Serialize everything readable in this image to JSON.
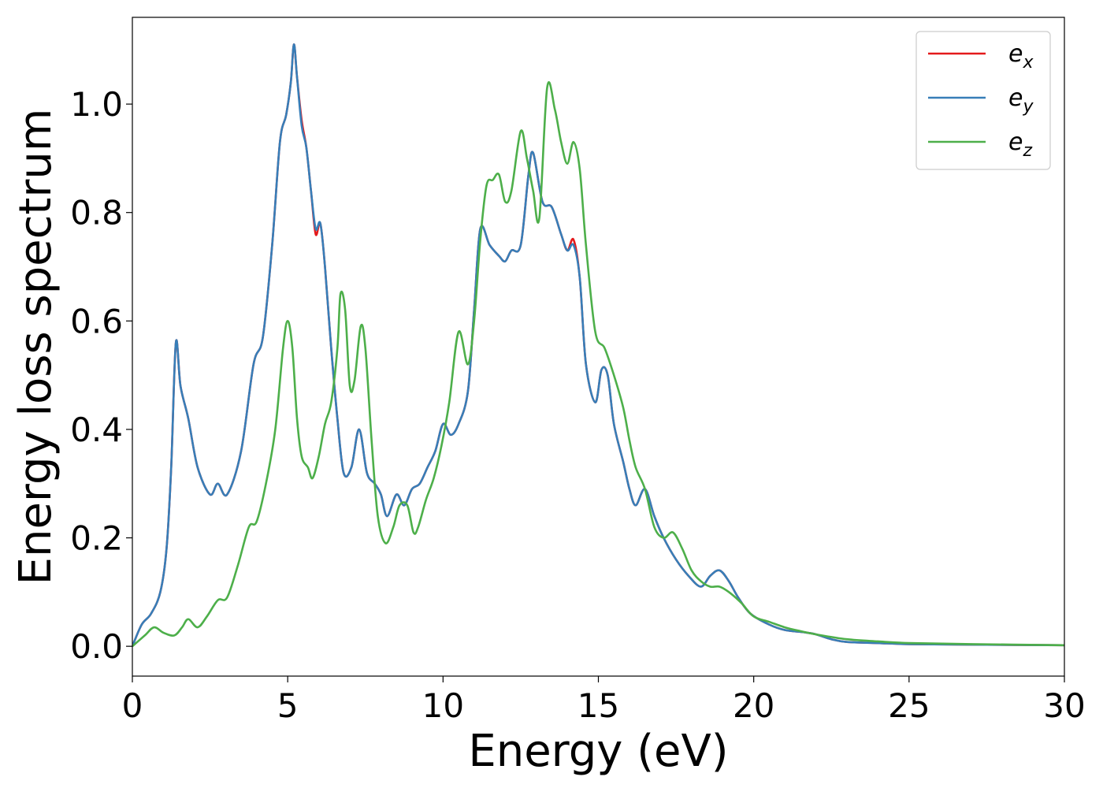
{
  "chart_data": {
    "type": "line",
    "xlabel": "Energy (eV)",
    "ylabel": "Energy loss spectrum",
    "xlim": [
      0,
      30
    ],
    "ylim": [
      -0.055,
      1.16
    ],
    "xticks": [
      0,
      5,
      10,
      15,
      20,
      25,
      30
    ],
    "xtick_labels": [
      "0",
      "5",
      "10",
      "15",
      "20",
      "25",
      "30"
    ],
    "yticks": [
      0.0,
      0.2,
      0.4,
      0.6,
      0.8,
      1.0
    ],
    "ytick_labels": [
      "0.0",
      "0.2",
      "0.4",
      "0.6",
      "0.8",
      "1.0"
    ],
    "grid": false,
    "legend_position": "top-right",
    "series": [
      {
        "name": "e_x",
        "label_base": "e",
        "label_sub": "x",
        "color": "#e41a1c",
        "x": [
          0,
          0.3,
          0.6,
          0.9,
          1.1,
          1.25,
          1.4,
          1.55,
          1.8,
          2.1,
          2.5,
          2.75,
          3.05,
          3.5,
          3.9,
          4.2,
          4.5,
          4.75,
          4.95,
          5.1,
          5.2,
          5.3,
          5.45,
          5.6,
          5.75,
          5.9,
          6.05,
          6.2,
          6.4,
          6.6,
          6.8,
          7.05,
          7.3,
          7.55,
          7.8,
          8.0,
          8.2,
          8.5,
          8.75,
          9.0,
          9.25,
          9.5,
          9.75,
          10.0,
          10.25,
          10.5,
          10.8,
          11.0,
          11.2,
          11.5,
          11.8,
          12.0,
          12.2,
          12.5,
          12.75,
          12.9,
          13.2,
          13.5,
          13.8,
          14.0,
          14.2,
          14.4,
          14.6,
          14.9,
          15.1,
          15.3,
          15.5,
          15.8,
          16.0,
          16.2,
          16.5,
          16.8,
          17.1,
          17.5,
          17.9,
          18.3,
          18.6,
          18.9,
          19.2,
          19.5,
          19.9,
          20.5,
          21.0,
          21.6,
          22.0,
          22.5,
          23.0,
          24.0,
          25.0,
          27.0,
          30.0
        ],
        "y": [
          0.0,
          0.04,
          0.06,
          0.1,
          0.18,
          0.33,
          0.56,
          0.48,
          0.42,
          0.33,
          0.28,
          0.3,
          0.28,
          0.36,
          0.52,
          0.57,
          0.74,
          0.93,
          0.98,
          1.04,
          1.11,
          1.05,
          0.97,
          0.92,
          0.84,
          0.76,
          0.78,
          0.7,
          0.55,
          0.42,
          0.32,
          0.33,
          0.4,
          0.32,
          0.3,
          0.28,
          0.24,
          0.28,
          0.26,
          0.29,
          0.3,
          0.33,
          0.36,
          0.41,
          0.39,
          0.41,
          0.47,
          0.62,
          0.77,
          0.74,
          0.72,
          0.71,
          0.73,
          0.74,
          0.87,
          0.91,
          0.82,
          0.81,
          0.76,
          0.73,
          0.75,
          0.68,
          0.52,
          0.45,
          0.51,
          0.5,
          0.41,
          0.34,
          0.29,
          0.26,
          0.29,
          0.24,
          0.2,
          0.16,
          0.13,
          0.11,
          0.13,
          0.14,
          0.12,
          0.09,
          0.06,
          0.04,
          0.03,
          0.026,
          0.022,
          0.013,
          0.008,
          0.006,
          0.004,
          0.003,
          0.002
        ]
      },
      {
        "name": "e_y",
        "label_base": "e",
        "label_sub": "y",
        "color": "#377eb8",
        "x": [
          0,
          0.3,
          0.6,
          0.9,
          1.1,
          1.25,
          1.4,
          1.55,
          1.8,
          2.1,
          2.5,
          2.75,
          3.05,
          3.5,
          3.9,
          4.2,
          4.5,
          4.75,
          4.95,
          5.1,
          5.2,
          5.3,
          5.45,
          5.6,
          5.75,
          5.9,
          6.05,
          6.2,
          6.4,
          6.6,
          6.8,
          7.05,
          7.3,
          7.55,
          7.8,
          8.0,
          8.2,
          8.5,
          8.75,
          9.0,
          9.25,
          9.5,
          9.75,
          10.0,
          10.25,
          10.5,
          10.8,
          11.0,
          11.2,
          11.5,
          11.8,
          12.0,
          12.2,
          12.5,
          12.75,
          12.9,
          13.2,
          13.5,
          13.8,
          14.0,
          14.2,
          14.4,
          14.6,
          14.9,
          15.1,
          15.3,
          15.5,
          15.8,
          16.0,
          16.2,
          16.5,
          16.8,
          17.1,
          17.5,
          17.9,
          18.3,
          18.6,
          18.9,
          19.2,
          19.5,
          19.9,
          20.5,
          21.0,
          21.6,
          22.0,
          22.5,
          23.0,
          24.0,
          25.0,
          27.0,
          30.0
        ],
        "y": [
          0.0,
          0.04,
          0.06,
          0.1,
          0.18,
          0.33,
          0.56,
          0.48,
          0.42,
          0.33,
          0.28,
          0.3,
          0.28,
          0.36,
          0.52,
          0.57,
          0.74,
          0.93,
          0.98,
          1.04,
          1.11,
          1.05,
          0.96,
          0.92,
          0.84,
          0.77,
          0.78,
          0.7,
          0.55,
          0.42,
          0.32,
          0.33,
          0.4,
          0.32,
          0.3,
          0.28,
          0.24,
          0.28,
          0.26,
          0.29,
          0.3,
          0.33,
          0.36,
          0.41,
          0.39,
          0.41,
          0.47,
          0.62,
          0.77,
          0.74,
          0.72,
          0.71,
          0.73,
          0.74,
          0.87,
          0.91,
          0.82,
          0.81,
          0.76,
          0.73,
          0.74,
          0.68,
          0.52,
          0.45,
          0.51,
          0.5,
          0.41,
          0.34,
          0.29,
          0.26,
          0.29,
          0.24,
          0.2,
          0.16,
          0.13,
          0.11,
          0.13,
          0.14,
          0.12,
          0.09,
          0.06,
          0.04,
          0.03,
          0.026,
          0.022,
          0.013,
          0.008,
          0.006,
          0.004,
          0.003,
          0.002
        ]
      },
      {
        "name": "e_z",
        "label_base": "e",
        "label_sub": "z",
        "color": "#4daf4a",
        "x": [
          0,
          0.4,
          0.7,
          1.0,
          1.35,
          1.6,
          1.8,
          2.1,
          2.4,
          2.75,
          3.05,
          3.4,
          3.75,
          4.0,
          4.3,
          4.6,
          4.85,
          5.0,
          5.15,
          5.3,
          5.45,
          5.65,
          5.8,
          6.0,
          6.2,
          6.4,
          6.6,
          6.7,
          6.85,
          7.0,
          7.15,
          7.35,
          7.5,
          7.7,
          7.9,
          8.15,
          8.4,
          8.6,
          8.85,
          9.05,
          9.2,
          9.45,
          9.7,
          9.95,
          10.2,
          10.5,
          10.8,
          11.0,
          11.2,
          11.4,
          11.6,
          11.8,
          12.0,
          12.2,
          12.5,
          12.7,
          12.9,
          13.1,
          13.35,
          13.6,
          13.8,
          14.0,
          14.2,
          14.4,
          14.6,
          14.9,
          15.2,
          15.5,
          15.8,
          16.0,
          16.2,
          16.5,
          16.8,
          17.1,
          17.4,
          17.7,
          18.0,
          18.3,
          18.6,
          18.9,
          19.2,
          19.6,
          20.0,
          20.5,
          21.0,
          21.5,
          22.0,
          23.0,
          24.0,
          25.0,
          27.0,
          30.0
        ],
        "y": [
          0.0,
          0.02,
          0.035,
          0.025,
          0.02,
          0.035,
          0.05,
          0.035,
          0.055,
          0.085,
          0.09,
          0.15,
          0.22,
          0.23,
          0.3,
          0.4,
          0.55,
          0.6,
          0.55,
          0.42,
          0.35,
          0.33,
          0.31,
          0.35,
          0.41,
          0.45,
          0.55,
          0.65,
          0.62,
          0.48,
          0.49,
          0.59,
          0.55,
          0.38,
          0.24,
          0.19,
          0.22,
          0.26,
          0.26,
          0.21,
          0.22,
          0.27,
          0.31,
          0.37,
          0.45,
          0.58,
          0.52,
          0.6,
          0.75,
          0.85,
          0.86,
          0.87,
          0.82,
          0.84,
          0.95,
          0.9,
          0.84,
          0.79,
          1.03,
          0.99,
          0.93,
          0.89,
          0.93,
          0.88,
          0.74,
          0.58,
          0.55,
          0.5,
          0.44,
          0.38,
          0.33,
          0.29,
          0.22,
          0.2,
          0.21,
          0.18,
          0.14,
          0.12,
          0.11,
          0.11,
          0.1,
          0.08,
          0.055,
          0.045,
          0.035,
          0.028,
          0.022,
          0.013,
          0.009,
          0.006,
          0.004,
          0.002
        ]
      }
    ]
  }
}
